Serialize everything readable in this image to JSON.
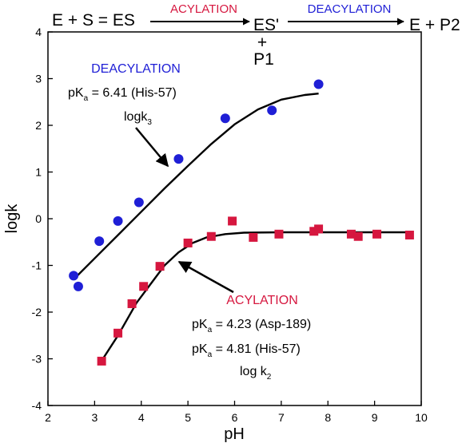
{
  "chart_data": {
    "type": "scatter",
    "xlabel": "pH",
    "ylabel": "logk",
    "xlim": [
      2,
      10
    ],
    "ylim": [
      -4,
      4
    ],
    "xticks": [
      2,
      3,
      4,
      5,
      6,
      7,
      8,
      9,
      10
    ],
    "yticks": [
      -4,
      -3,
      -2,
      -1,
      0,
      1,
      2,
      3,
      4
    ],
    "grid": false,
    "colors": {
      "deacylation": "#1f1fd6",
      "acylation": "#d6173f",
      "fit": "#000000"
    },
    "series": [
      {
        "marker": "circle",
        "x": [
          2.55,
          2.65,
          3.1,
          3.5,
          3.95,
          4.8,
          5.8,
          6.8,
          7.8
        ],
        "y": [
          -1.22,
          -1.45,
          -0.48,
          -0.05,
          0.35,
          1.28,
          2.15,
          2.32,
          2.88
        ],
        "fit": {
          "x": [
            2.55,
            3.0,
            3.5,
            4.0,
            4.5,
            5.0,
            5.5,
            6.0,
            6.5,
            7.0,
            7.5,
            7.8
          ],
          "y": [
            -1.3,
            -0.85,
            -0.35,
            0.15,
            0.65,
            1.13,
            1.6,
            2.02,
            2.34,
            2.55,
            2.65,
            2.68
          ]
        }
      },
      {
        "marker": "square",
        "x": [
          3.15,
          3.5,
          3.8,
          4.05,
          4.4,
          5.0,
          5.5,
          5.95,
          6.4,
          6.95,
          7.7,
          7.8,
          8.5,
          8.65,
          9.05,
          9.75
        ],
        "y": [
          -3.05,
          -2.45,
          -1.82,
          -1.45,
          -1.02,
          -0.52,
          -0.38,
          -0.05,
          -0.4,
          -0.33,
          -0.27,
          -0.22,
          -0.33,
          -0.38,
          -0.33,
          -0.35
        ],
        "fit": {
          "x": [
            3.1,
            3.5,
            3.9,
            4.2,
            4.5,
            4.8,
            5.1,
            5.4,
            5.8,
            6.2,
            7.0,
            8.0,
            9.0,
            9.8
          ],
          "y": [
            -3.12,
            -2.5,
            -1.8,
            -1.4,
            -1.0,
            -0.72,
            -0.52,
            -0.4,
            -0.33,
            -0.3,
            -0.29,
            -0.29,
            -0.29,
            -0.29
          ]
        }
      }
    ]
  },
  "scheme": {
    "left": "E + S = ES",
    "step1": "ACYLATION",
    "mid": "ES'",
    "plus": "+",
    "product1": "P1",
    "step2": "DEACYLATION",
    "right": "E + P2"
  },
  "annotations": {
    "deacylation": {
      "title": "DEACYLATION",
      "pka_label": "pK",
      "pka_sub": "a",
      "pka_value": " = 6.41 (His-57)",
      "rate_label": "logk",
      "rate_sub": "3"
    },
    "acylation": {
      "title": "ACYLATION",
      "pka1_label": "pK",
      "pka1_sub": "a",
      "pka1_value": " = 4.23 (Asp-189)",
      "pka2_label": "pK",
      "pka2_sub": "a",
      "pka2_value": " = 4.81 (His-57)",
      "rate_label": "log k",
      "rate_sub": "2"
    }
  }
}
